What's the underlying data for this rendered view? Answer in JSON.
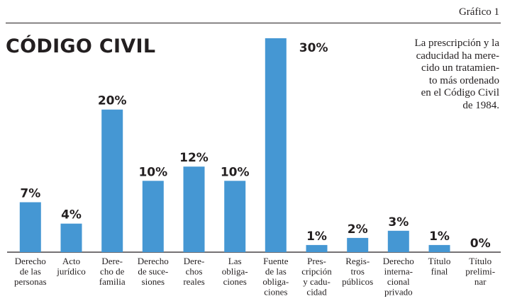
{
  "figure_label": "Gráfico 1",
  "title": "CÓDIGO CIVIL",
  "note_lines": [
    "La prescripción y la",
    "caducidad ha mere-",
    "cido un tratamien-",
    "to más ordenado",
    "en el Código Civil",
    "de 1984."
  ],
  "colors": {
    "bar": "#4597d3",
    "text": "#231f20"
  },
  "chart_data": {
    "type": "bar",
    "title": "CÓDIGO CIVIL",
    "unit": "%",
    "ylim": [
      0,
      30
    ],
    "grid": false,
    "categories": [
      [
        "Derecho",
        "de las",
        "personas"
      ],
      [
        "Acto",
        "jurídico"
      ],
      [
        "Dere-",
        "cho de",
        "familia"
      ],
      [
        "Derecho",
        "de suce-",
        "siones"
      ],
      [
        "Dere-",
        "chos",
        "reales"
      ],
      [
        "Las",
        "obliga-",
        "ciones"
      ],
      [
        "Fuente",
        "de las",
        "obliga-",
        "ciones"
      ],
      [
        "Pres-",
        "cripción",
        "y cadu-",
        "cidad"
      ],
      [
        "Regis-",
        "tros",
        "públicos"
      ],
      [
        "Derecho",
        "interna-",
        "cional",
        "privado"
      ],
      [
        "Título",
        "final"
      ],
      [
        "Título",
        "prelimi-",
        "nar"
      ]
    ],
    "values": [
      7,
      4,
      20,
      10,
      12,
      10,
      30,
      1,
      2,
      3,
      1,
      0
    ],
    "value_labels": [
      "7%",
      "4%",
      "20%",
      "10%",
      "12%",
      "10%",
      "30%",
      "1%",
      "2%",
      "3%",
      "1%",
      "0%"
    ]
  }
}
